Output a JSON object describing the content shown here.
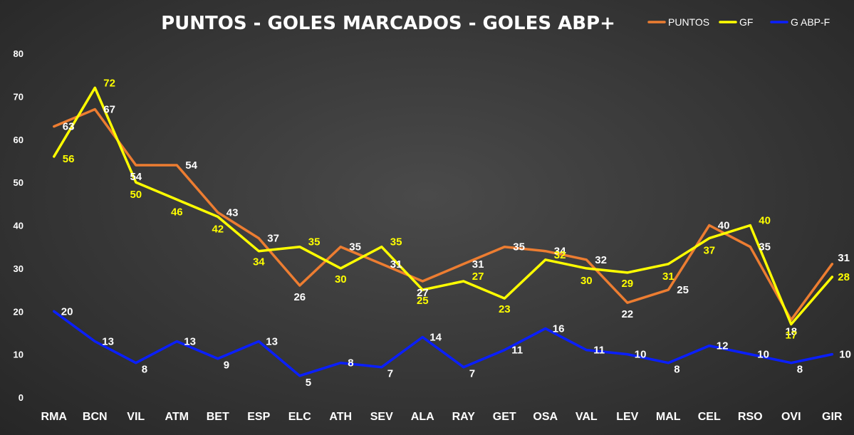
{
  "chart_data": {
    "type": "line",
    "title": "PUNTOS - GOLES MARCADOS - GOLES ABP+",
    "xlabel": "",
    "ylabel": "",
    "ylim": [
      0,
      80
    ],
    "yticks": [
      0,
      10,
      20,
      30,
      40,
      50,
      60,
      70,
      80
    ],
    "legend_position": "top-right",
    "categories": [
      "RMA",
      "BCN",
      "VIL",
      "ATM",
      "BET",
      "ESP",
      "ELC",
      "ATH",
      "SEV",
      "ALA",
      "RAY",
      "GET",
      "OSA",
      "VAL",
      "LEV",
      "MAL",
      "CEL",
      "RSO",
      "OVI",
      "GIR"
    ],
    "series": [
      {
        "name": "PUNTOS",
        "color": "#ED7D31",
        "label_color": "#FFFFFF",
        "values": [
          63,
          67,
          54,
          54,
          43,
          37,
          26,
          35,
          31,
          27,
          31,
          35,
          34,
          32,
          22,
          25,
          40,
          35,
          18,
          31
        ]
      },
      {
        "name": "GF",
        "color": "#FFFF00",
        "label_color": "#FFFF00",
        "values": [
          56,
          72,
          50,
          46,
          42,
          34,
          35,
          30,
          35,
          25,
          27,
          23,
          32,
          30,
          29,
          31,
          37,
          40,
          17,
          28
        ]
      },
      {
        "name": "G ABP-F",
        "color": "#0A1FFF",
        "label_color": "#FFFFFF",
        "values": [
          20,
          13,
          8,
          13,
          9,
          13,
          5,
          8,
          7,
          14,
          7,
          11,
          16,
          11,
          10,
          8,
          12,
          10,
          8,
          10
        ]
      }
    ]
  }
}
